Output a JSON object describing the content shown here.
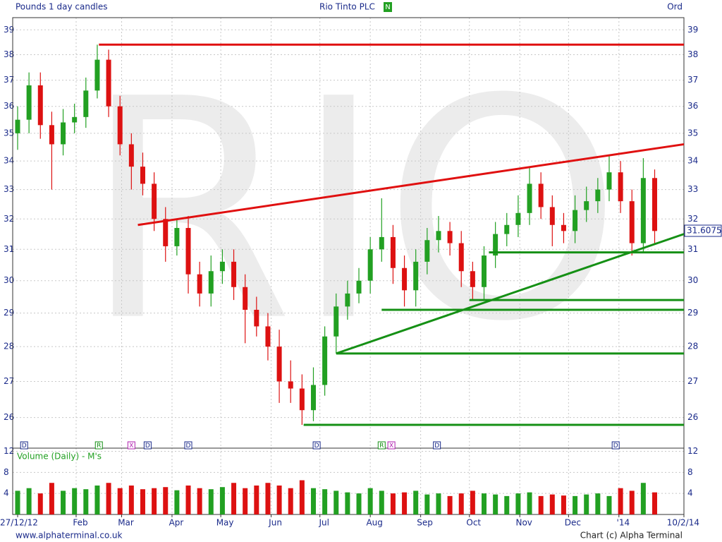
{
  "chart_data": {
    "type": "candlestick",
    "title": "Rio Tinto PLC",
    "subtitle": "Pounds 1 day candles",
    "badge": "N",
    "share_class": "Ord",
    "watermark": "RIO",
    "source": "www.alphaterminal.co.uk",
    "credit": "Chart (c) Alpha Terminal",
    "log_scale": true,
    "grid": true,
    "up_color": "#22a022",
    "down_color": "#dd1111",
    "xlim": [
      0,
      410
    ],
    "xticks": [
      {
        "value": 0,
        "label": "27/12/12"
      },
      {
        "value": 36,
        "label": "Feb"
      },
      {
        "value": 64,
        "label": "Mar"
      },
      {
        "value": 95,
        "label": "Apr"
      },
      {
        "value": 125,
        "label": "May"
      },
      {
        "value": 156,
        "label": "Jun"
      },
      {
        "value": 186,
        "label": "Jul"
      },
      {
        "value": 217,
        "label": "Aug"
      },
      {
        "value": 248,
        "label": "Sep"
      },
      {
        "value": 278,
        "label": "Oct"
      },
      {
        "value": 309,
        "label": "Nov"
      },
      {
        "value": 339,
        "label": "Dec"
      },
      {
        "value": 370,
        "label": "'14"
      },
      {
        "value": 410,
        "label": "10/2/14"
      }
    ],
    "ylim": [
      25.18,
      39.5
    ],
    "yticks": [
      26,
      27,
      28,
      29,
      30,
      31,
      32,
      33,
      34,
      35,
      36,
      37,
      38,
      39
    ],
    "x": [
      0,
      7,
      14,
      21,
      28,
      35,
      42,
      49,
      56,
      63,
      70,
      77,
      84,
      91,
      98,
      105,
      112,
      119,
      126,
      133,
      140,
      147,
      154,
      161,
      168,
      175,
      182,
      189,
      196,
      203,
      210,
      217,
      224,
      231,
      238,
      245,
      252,
      259,
      266,
      273,
      280,
      287,
      294,
      301,
      308,
      315,
      322,
      329,
      336,
      343,
      350,
      357,
      364,
      371,
      378,
      385,
      392
    ],
    "open": [
      35.0,
      35.5,
      36.8,
      35.3,
      34.6,
      35.4,
      35.6,
      36.6,
      37.8,
      36.0,
      34.6,
      33.8,
      33.2,
      32.0,
      31.1,
      31.7,
      30.2,
      29.6,
      30.3,
      30.6,
      29.8,
      29.1,
      28.6,
      28.0,
      27.0,
      26.8,
      26.2,
      26.9,
      28.3,
      29.2,
      29.6,
      30.0,
      31.0,
      31.4,
      30.4,
      29.7,
      30.6,
      31.3,
      31.6,
      31.2,
      30.3,
      29.8,
      30.8,
      31.5,
      31.8,
      32.2,
      33.2,
      32.4,
      31.8,
      31.6,
      32.3,
      32.6,
      33.0,
      33.6,
      32.6,
      31.2,
      33.4
    ],
    "high": [
      36.0,
      37.3,
      37.3,
      35.8,
      35.9,
      36.1,
      37.1,
      38.4,
      38.2,
      36.4,
      35.0,
      34.3,
      33.6,
      32.4,
      32.0,
      32.1,
      30.6,
      30.8,
      31.0,
      31.0,
      30.2,
      29.5,
      29.0,
      28.5,
      27.6,
      27.2,
      27.4,
      28.6,
      29.6,
      30.0,
      30.4,
      31.4,
      32.7,
      31.8,
      30.8,
      31.0,
      31.7,
      32.1,
      31.9,
      31.6,
      30.6,
      31.1,
      31.9,
      32.2,
      32.8,
      33.8,
      33.6,
      32.8,
      32.2,
      32.8,
      33.1,
      33.4,
      34.2,
      34.0,
      33.0,
      34.1,
      33.7
    ],
    "low": [
      34.4,
      35.0,
      34.8,
      33.0,
      34.2,
      35.0,
      35.2,
      36.3,
      35.6,
      34.2,
      33.0,
      32.8,
      31.6,
      30.6,
      30.8,
      29.6,
      29.2,
      29.2,
      29.9,
      29.4,
      28.1,
      28.3,
      27.6,
      26.4,
      26.4,
      25.8,
      25.9,
      26.6,
      27.8,
      28.8,
      29.3,
      29.6,
      30.6,
      29.9,
      29.2,
      29.2,
      30.2,
      30.9,
      30.8,
      29.8,
      29.4,
      29.4,
      30.4,
      31.1,
      31.4,
      31.8,
      32.0,
      31.1,
      31.2,
      31.2,
      31.9,
      32.2,
      32.6,
      32.2,
      30.8,
      30.9,
      31.2
    ],
    "close": [
      35.5,
      36.8,
      35.3,
      34.6,
      35.4,
      35.6,
      36.6,
      37.8,
      36.0,
      34.6,
      33.8,
      33.2,
      32.0,
      31.1,
      31.7,
      30.2,
      29.6,
      30.3,
      30.6,
      29.8,
      29.1,
      28.6,
      28.0,
      27.0,
      26.8,
      26.2,
      26.9,
      28.3,
      29.2,
      29.6,
      30.0,
      31.0,
      31.4,
      30.4,
      29.7,
      30.6,
      31.3,
      31.6,
      31.2,
      30.3,
      29.8,
      30.8,
      31.5,
      31.8,
      32.2,
      33.2,
      32.4,
      31.8,
      31.6,
      32.3,
      32.6,
      33.0,
      33.6,
      32.6,
      31.2,
      33.4,
      31.6
    ],
    "last_price": 31.6075,
    "trend_lines": [
      {
        "color": "#e01010",
        "x": [
          50,
          410
        ],
        "y": [
          38.4,
          38.4
        ]
      },
      {
        "color": "#e01010",
        "x": [
          74,
          410
        ],
        "y": [
          31.8,
          34.6
        ]
      },
      {
        "color": "#159015",
        "x": [
          196,
          410
        ],
        "y": [
          27.8,
          31.5
        ]
      },
      {
        "color": "#159015",
        "x": [
          176,
          410
        ],
        "y": [
          25.8,
          25.8
        ]
      },
      {
        "color": "#159015",
        "x": [
          196,
          410
        ],
        "y": [
          27.8,
          27.8
        ]
      },
      {
        "color": "#159015",
        "x": [
          224,
          410
        ],
        "y": [
          29.1,
          29.1
        ]
      },
      {
        "color": "#159015",
        "x": [
          278,
          410
        ],
        "y": [
          29.4,
          29.4
        ]
      },
      {
        "color": "#159015",
        "x": [
          290,
          410
        ],
        "y": [
          30.9,
          30.9
        ]
      }
    ],
    "events": [
      {
        "label": "D",
        "x": 4,
        "color": "#1a2a8a"
      },
      {
        "label": "R",
        "x": 50,
        "color": "#159015"
      },
      {
        "label": "X",
        "x": 70,
        "color": "#b020b0"
      },
      {
        "label": "D",
        "x": 80,
        "color": "#1a2a8a"
      },
      {
        "label": "D",
        "x": 105,
        "color": "#1a2a8a"
      },
      {
        "label": "D",
        "x": 184,
        "color": "#1a2a8a"
      },
      {
        "label": "R",
        "x": 224,
        "color": "#159015"
      },
      {
        "label": "X",
        "x": 230,
        "color": "#b020b0"
      },
      {
        "label": "D",
        "x": 258,
        "color": "#1a2a8a"
      },
      {
        "label": "D",
        "x": 368,
        "color": "#1a2a8a"
      }
    ],
    "volume": {
      "name": "Volume (Daily) - M's",
      "ylim": [
        0,
        12.6
      ],
      "yticks": [
        4,
        8,
        12
      ],
      "values": [
        4.5,
        5,
        4,
        6,
        4.5,
        5,
        4.8,
        5.5,
        6,
        5,
        5.5,
        4.8,
        5,
        5.2,
        4.6,
        5.5,
        5,
        4.8,
        5.2,
        6,
        5,
        5.5,
        6,
        5.5,
        5,
        6.5,
        5,
        4.8,
        4.5,
        4.2,
        4,
        5,
        4.5,
        4,
        4.2,
        4.5,
        3.8,
        4,
        3.5,
        4,
        4.5,
        4,
        3.8,
        3.5,
        4,
        4.2,
        3.5,
        3.8,
        3.6,
        3.5,
        3.8,
        4,
        3.5,
        5,
        4.5,
        6,
        4.2
      ]
    }
  }
}
